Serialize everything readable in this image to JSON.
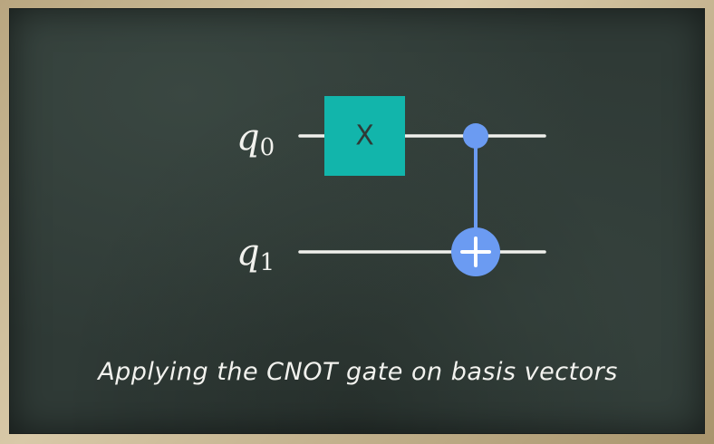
{
  "circuit": {
    "qubits": [
      {
        "base": "q",
        "sub": "0"
      },
      {
        "base": "q",
        "sub": "1"
      }
    ],
    "gates": [
      {
        "type": "X",
        "label": "X",
        "target": 0
      },
      {
        "type": "CNOT",
        "control": 0,
        "target": 1
      }
    ],
    "colors": {
      "x_gate": "#12b5ab",
      "cnot": "#6b9bf2",
      "wire": "#f0f0ec",
      "text": "#f2f2ee",
      "board": "#2f3a36"
    }
  },
  "caption": "Applying the CNOT gate on basis vectors"
}
